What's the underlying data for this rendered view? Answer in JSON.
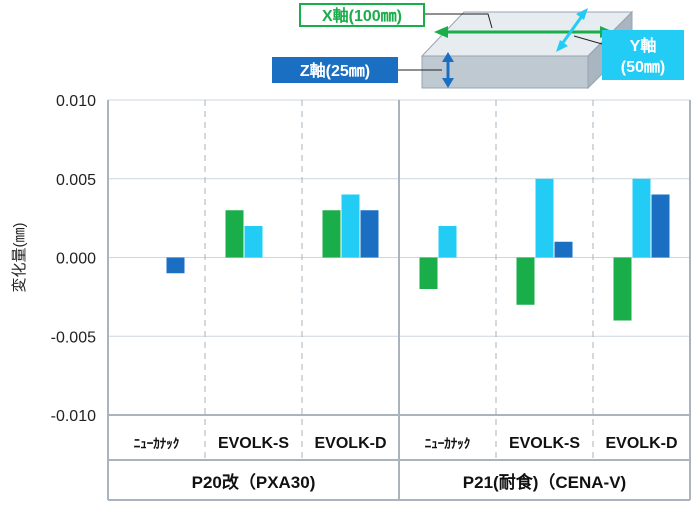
{
  "chart_data": {
    "type": "bar",
    "ylabel": "変化量(㎜)",
    "ylim": [
      -0.01,
      0.01
    ],
    "yticks": [
      0.01,
      0.005,
      0.0,
      -0.005,
      -0.01
    ],
    "ytick_labels": [
      "0.010",
      "0.005",
      "0.000",
      "-0.005",
      "-0.010"
    ],
    "groups": [
      {
        "name": "P20改（PXA30)",
        "categories": [
          "ﾆｭｰｶﾅｯｸ",
          "EVOLK-S",
          "EVOLK-D"
        ],
        "series": [
          {
            "name": "X軸(100㎜)",
            "values": [
              null,
              0.003,
              0.003
            ]
          },
          {
            "name": "Y軸(50㎜)",
            "values": [
              null,
              0.002,
              0.004
            ]
          },
          {
            "name": "Z軸(25㎜)",
            "values": [
              -0.001,
              null,
              0.003
            ]
          }
        ]
      },
      {
        "name": "P21(耐食)（CENA-V)",
        "categories": [
          "ﾆｭｰｶﾅｯｸ",
          "EVOLK-S",
          "EVOLK-D"
        ],
        "series": [
          {
            "name": "X軸(100㎜)",
            "values": [
              -0.002,
              -0.003,
              -0.004
            ]
          },
          {
            "name": "Y軸(50㎜)",
            "values": [
              0.002,
              0.005,
              0.005
            ]
          },
          {
            "name": "Z軸(25㎜)",
            "values": [
              null,
              0.001,
              0.004
            ]
          }
        ]
      }
    ],
    "series_colors": [
      "#1aae4a",
      "#22ccf4",
      "#1a6fc2"
    ],
    "legend": {
      "placement": "top-right",
      "x_label": "X軸(100㎜)",
      "y_label_line1": "Y軸",
      "y_label_line2": "(50㎜)",
      "z_label": "Z軸(25㎜)"
    }
  }
}
